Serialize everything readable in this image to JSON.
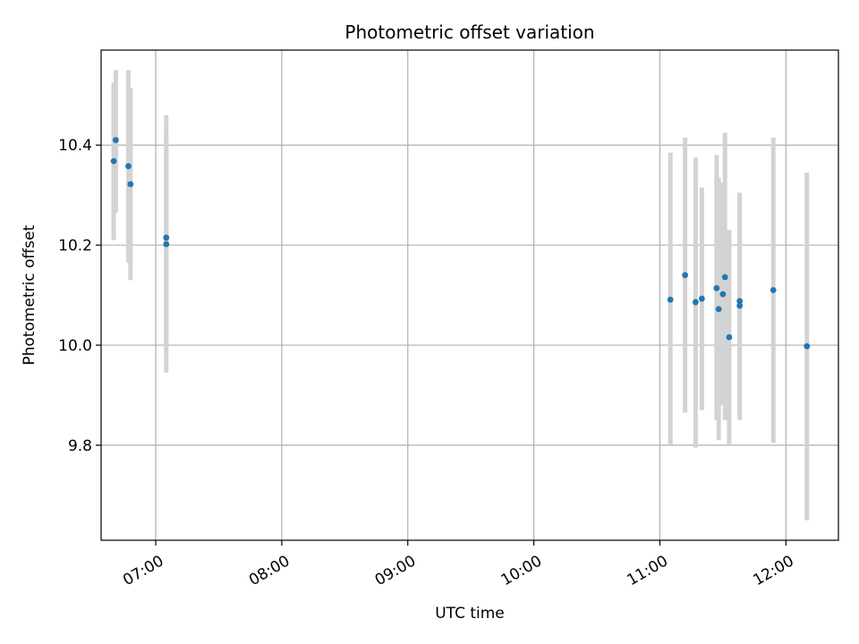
{
  "chart_data": {
    "type": "scatter",
    "title": "Photometric offset variation",
    "xlabel": "UTC time",
    "ylabel": "Photometric offset",
    "x_axis_kind": "time",
    "xlim": [
      "06:34",
      "12:25"
    ],
    "ylim": [
      9.61,
      10.59
    ],
    "x_ticks": [
      "07:00",
      "08:00",
      "09:00",
      "10:00",
      "11:00",
      "12:00"
    ],
    "y_ticks": [
      9.8,
      10.0,
      10.2,
      10.4
    ],
    "y_tick_labels": [
      "9.8",
      "10.0",
      "10.2",
      "10.4"
    ],
    "grid": true,
    "legend": "none",
    "colors": {
      "point": "#1f77b4",
      "error_bar": "#d3d3d3",
      "grid": "#b0b0b0"
    },
    "points": [
      {
        "x": "06:40",
        "y": 10.368,
        "low": 10.21,
        "high": 10.525
      },
      {
        "x": "06:41",
        "y": 10.41,
        "low": 10.265,
        "high": 10.55
      },
      {
        "x": "06:47",
        "y": 10.358,
        "low": 10.165,
        "high": 10.55
      },
      {
        "x": "06:48",
        "y": 10.322,
        "low": 10.13,
        "high": 10.515
      },
      {
        "x": "07:05",
        "y": 10.215,
        "low": 10.0,
        "high": 10.425
      },
      {
        "x": "07:05",
        "y": 10.202,
        "low": 9.945,
        "high": 10.46
      },
      {
        "x": "11:05",
        "y": 10.091,
        "low": 9.8,
        "high": 10.385
      },
      {
        "x": "11:12",
        "y": 10.14,
        "low": 9.865,
        "high": 10.415
      },
      {
        "x": "11:17",
        "y": 10.086,
        "low": 9.795,
        "high": 10.375
      },
      {
        "x": "11:20",
        "y": 10.093,
        "low": 9.87,
        "high": 10.315
      },
      {
        "x": "11:27",
        "y": 10.114,
        "low": 9.85,
        "high": 10.38
      },
      {
        "x": "11:28",
        "y": 10.072,
        "low": 9.81,
        "high": 10.335
      },
      {
        "x": "11:30",
        "y": 10.102,
        "low": 9.88,
        "high": 10.325
      },
      {
        "x": "11:31",
        "y": 10.136,
        "low": 9.85,
        "high": 10.425
      },
      {
        "x": "11:33",
        "y": 10.016,
        "low": 9.8,
        "high": 10.23
      },
      {
        "x": "11:38",
        "y": 10.088,
        "low": 9.85,
        "high": 10.305
      },
      {
        "x": "11:38",
        "y": 10.079,
        "low": 9.86,
        "high": 10.3
      },
      {
        "x": "11:54",
        "y": 10.11,
        "low": 9.805,
        "high": 10.415
      },
      {
        "x": "12:10",
        "y": 9.998,
        "low": 9.65,
        "high": 10.345
      }
    ]
  }
}
